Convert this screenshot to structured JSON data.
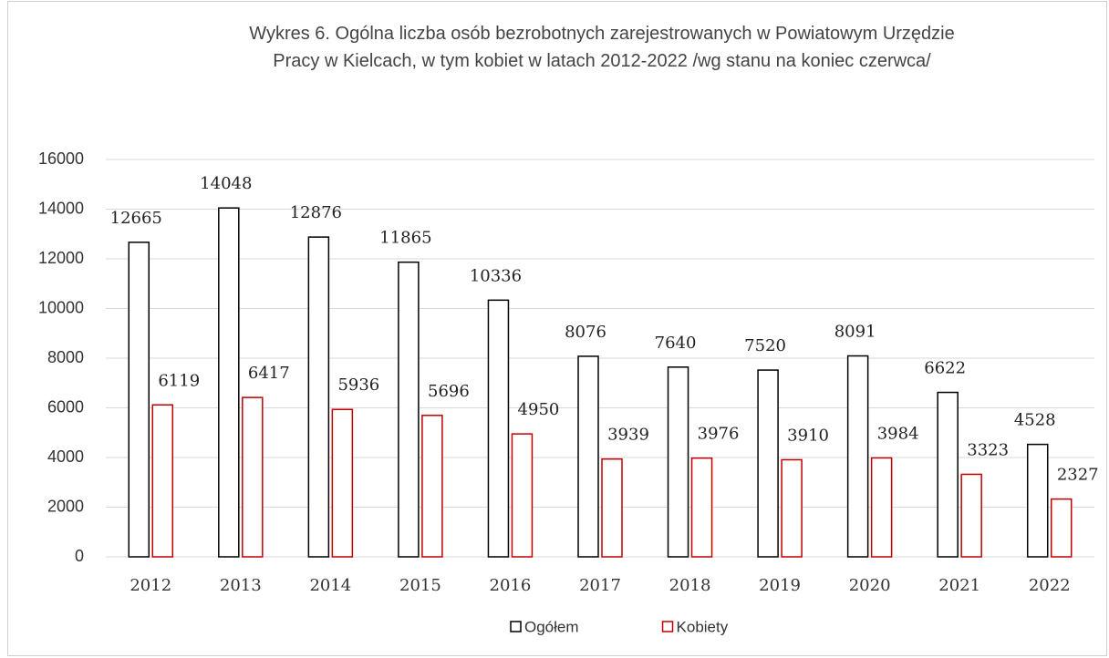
{
  "chart_data": {
    "type": "bar",
    "title": "Wykres 6. Ogólna liczba osób bezrobotnych zarejestrowanych w Powiatowym Urzędzie\nPracy w Kielcach, w tym kobiet w latach 2012-2022 /wg stanu na koniec czerwca/",
    "categories": [
      "2012",
      "2013",
      "2014",
      "2015",
      "2016",
      "2017",
      "2018",
      "2019",
      "2020",
      "2021",
      "2022"
    ],
    "series": [
      {
        "name": "Ogółem",
        "color": "#000000",
        "values": [
          12665,
          14048,
          12876,
          11865,
          10336,
          8076,
          7640,
          7520,
          8091,
          6622,
          4528
        ]
      },
      {
        "name": "Kobiety",
        "color": "#c00000",
        "values": [
          6119,
          6417,
          5936,
          5696,
          4950,
          3939,
          3976,
          3910,
          3984,
          3323,
          2327
        ]
      }
    ],
    "ylim": [
      0,
      16000
    ],
    "yticks": [
      0,
      2000,
      4000,
      6000,
      8000,
      10000,
      12000,
      14000,
      16000
    ],
    "grid": true,
    "legend": "bottom"
  }
}
